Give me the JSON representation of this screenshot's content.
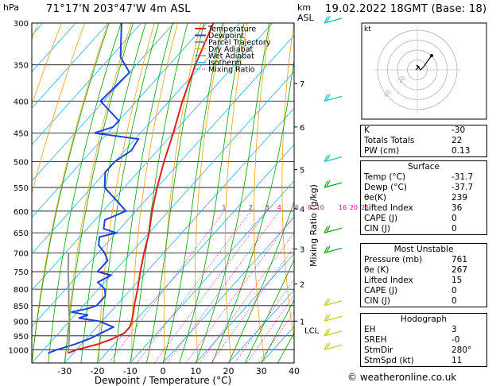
{
  "header": {
    "location": "71°17'N  203°47'W  4m  ASL",
    "datetime": "19.02.2022  18GMT  (Base: 18)"
  },
  "hodograph": {
    "label": "kt",
    "ring_labels": [
      "20",
      "40"
    ]
  },
  "indices": [
    {
      "label": "K",
      "value": "-30"
    },
    {
      "label": "Totals Totals",
      "value": "22"
    },
    {
      "label": "PW (cm)",
      "value": "0.13"
    }
  ],
  "surface": {
    "title": "Surface",
    "rows": [
      {
        "label": "Temp (°C)",
        "value": "-31.7"
      },
      {
        "label": "Dewp (°C)",
        "value": "-37.7"
      },
      {
        "label": "θe(K)",
        "value": "239"
      },
      {
        "label": "Lifted Index",
        "value": "36"
      },
      {
        "label": "CAPE (J)",
        "value": "0"
      },
      {
        "label": "CIN (J)",
        "value": "0"
      }
    ]
  },
  "most_unstable": {
    "title": "Most Unstable",
    "rows": [
      {
        "label": "Pressure (mb)",
        "value": "761"
      },
      {
        "label": "θe (K)",
        "value": "267"
      },
      {
        "label": "Lifted Index",
        "value": "15"
      },
      {
        "label": "CAPE (J)",
        "value": "0"
      },
      {
        "label": "CIN (J)",
        "value": "0"
      }
    ]
  },
  "hodograph_table": {
    "title": "Hodograph",
    "rows": [
      {
        "label": "EH",
        "value": "3"
      },
      {
        "label": "SREH",
        "value": "-0"
      },
      {
        "label": "StmDir",
        "value": "280°"
      },
      {
        "label": "StmSpd (kt)",
        "value": "11"
      }
    ]
  },
  "credit": "© weatheronline.co.uk",
  "colors": {
    "temperature": "#e02020",
    "dewpoint": "#2040e0",
    "parcel": "#909090",
    "dry_adiabat": "#f0a000",
    "wet_adiabat": "#00a000",
    "isotherm": "#30b0f0",
    "mixing_ratio": "#e000a0",
    "wind": "#c8c800",
    "wind_upper": "#00c0c0"
  },
  "chart_data": {
    "type": "line",
    "subtype": "skew-t log-p",
    "xlabel": "Dewpoint / Temperature (°C)",
    "ylabel_left": "hPa",
    "ylabel_right_top": "km ASL",
    "ylabel_right": "Mixing Ratio (g/kg)",
    "x_ticks": [
      -30,
      -20,
      -10,
      0,
      10,
      20,
      30,
      40
    ],
    "pressure_levels": [
      300,
      350,
      400,
      450,
      500,
      550,
      600,
      650,
      700,
      750,
      800,
      850,
      900,
      950,
      1000
    ],
    "km_labels": [
      {
        "km": "1",
        "p": 900
      },
      {
        "km": "2",
        "p": 785
      },
      {
        "km": "3",
        "p": 690
      },
      {
        "km": "4",
        "p": 595
      },
      {
        "km": "5",
        "p": 515
      },
      {
        "km": "6",
        "p": 440
      },
      {
        "km": "7",
        "p": 375
      }
    ],
    "lcl_label": "LCL",
    "lcl_p": 930,
    "mixing_ratio_labels": [
      "1",
      "2",
      "3",
      "4",
      "6",
      "8",
      "10",
      "16",
      "20",
      "25"
    ],
    "mixing_ratio_values": [
      1,
      2,
      3,
      4,
      6,
      8,
      10,
      16,
      20,
      25
    ],
    "legend": [
      "Temperature",
      "Dewpoint",
      "Parcel Trajectory",
      "Dry Adiabat",
      "Wet Adiabat",
      "Isotherm",
      "Mixing Ratio"
    ],
    "legend_position": "top-right of plot",
    "series": [
      {
        "name": "Temperature",
        "points": [
          [
            1013,
            -31.7
          ],
          [
            1000,
            -30
          ],
          [
            980,
            -25
          ],
          [
            960,
            -22
          ],
          [
            940,
            -20
          ],
          [
            920,
            -20
          ],
          [
            900,
            -21
          ],
          [
            870,
            -23
          ],
          [
            850,
            -24.5
          ],
          [
            800,
            -28
          ],
          [
            750,
            -32
          ],
          [
            700,
            -36
          ],
          [
            650,
            -40
          ],
          [
            600,
            -45
          ],
          [
            550,
            -50
          ],
          [
            500,
            -55
          ],
          [
            450,
            -60
          ],
          [
            400,
            -66
          ],
          [
            350,
            -72
          ],
          [
            300,
            -78
          ]
        ]
      },
      {
        "name": "Dewpoint",
        "points": [
          [
            1013,
            -37.7
          ],
          [
            1000,
            -36
          ],
          [
            980,
            -32
          ],
          [
            960,
            -29
          ],
          [
            940,
            -27
          ],
          [
            920,
            -25
          ],
          [
            910,
            -28
          ],
          [
            900,
            -31
          ],
          [
            890,
            -38
          ],
          [
            880,
            -36
          ],
          [
            870,
            -42
          ],
          [
            860,
            -38
          ],
          [
            850,
            -36
          ],
          [
            820,
            -36
          ],
          [
            800,
            -38
          ],
          [
            780,
            -42
          ],
          [
            760,
            -40
          ],
          [
            750,
            -45
          ],
          [
            720,
            -45
          ],
          [
            700,
            -48
          ],
          [
            680,
            -52
          ],
          [
            660,
            -54
          ],
          [
            650,
            -50
          ],
          [
            640,
            -55
          ],
          [
            620,
            -57
          ],
          [
            600,
            -53
          ],
          [
            580,
            -58
          ],
          [
            550,
            -66
          ],
          [
            520,
            -70
          ],
          [
            500,
            -70
          ],
          [
            480,
            -68
          ],
          [
            460,
            -69
          ],
          [
            450,
            -84
          ],
          [
            440,
            -80
          ],
          [
            430,
            -80
          ],
          [
            400,
            -91
          ],
          [
            360,
            -90
          ],
          [
            340,
            -97
          ],
          [
            300,
            -106
          ]
        ]
      },
      {
        "name": "Parcel Trajectory",
        "points": [
          [
            1013,
            -31.7
          ],
          [
            1000,
            -32.5
          ],
          [
            950,
            -36
          ],
          [
            930,
            -37.6
          ],
          [
            900,
            -40
          ],
          [
            850,
            -44.5
          ],
          [
            800,
            -49
          ],
          [
            750,
            -54
          ],
          [
            700,
            -59
          ]
        ]
      }
    ],
    "wind_levels_hpa": [
      300,
      400,
      500,
      550,
      650,
      700,
      850,
      900,
      950,
      1000
    ]
  }
}
